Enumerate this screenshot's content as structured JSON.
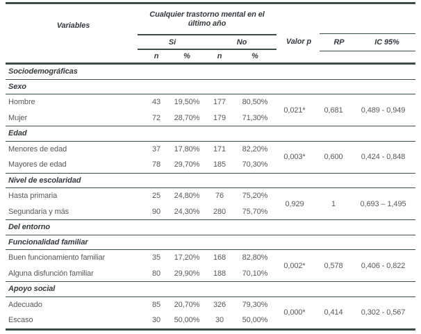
{
  "colors": {
    "line": "#3a4b48",
    "header_text": "#333a3d",
    "body_text": "#54575a"
  },
  "header": {
    "variables": "Variables",
    "group_title": "Cualquier trastorno mental en el último año",
    "si": "Si",
    "no": "No",
    "n": "n",
    "pct": "%",
    "valor_p": "Valor p",
    "rp": "RP",
    "ic": "IC 95%"
  },
  "rows": [
    {
      "type": "section",
      "label": "Sociodemográficas"
    },
    {
      "type": "section",
      "label": "Sexo"
    },
    {
      "type": "pair",
      "a": {
        "label": "Hombre",
        "n_si": "43",
        "pct_si": "19,50%",
        "n_no": "177",
        "pct_no": "80,50%"
      },
      "b": {
        "label": "Mujer",
        "n_si": "72",
        "pct_si": "28,70%",
        "n_no": "179",
        "pct_no": "71,30%"
      },
      "valor_p": "0,021*",
      "rp": "0,681",
      "ic": "0,489 - 0,949"
    },
    {
      "type": "section",
      "label": "Edad"
    },
    {
      "type": "pair",
      "a": {
        "label": "Menores de edad",
        "n_si": "37",
        "pct_si": "17,80%",
        "n_no": "171",
        "pct_no": "82,20%"
      },
      "b": {
        "label": "Mayores de edad",
        "n_si": "78",
        "pct_si": "29,70%",
        "n_no": "185",
        "pct_no": "70,30%"
      },
      "valor_p": "0,003*",
      "rp": "0,600",
      "ic": "0,424 - 0,848"
    },
    {
      "type": "section",
      "label": "Nivel de escolaridad"
    },
    {
      "type": "pair",
      "a": {
        "label": "Hasta primaria",
        "n_si": "25",
        "pct_si": "24,80%",
        "n_no": "76",
        "pct_no": "75,20%"
      },
      "b": {
        "label": "Segundaria y más",
        "n_si": "90",
        "pct_si": "24,30%",
        "n_no": "280",
        "pct_no": "75,70%"
      },
      "valor_p": "0,929",
      "rp": "1",
      "ic": "0,693 – 1,495"
    },
    {
      "type": "section",
      "label": "Del entorno"
    },
    {
      "type": "section",
      "label": "Funcionalidad familiar"
    },
    {
      "type": "pair",
      "a": {
        "label": "Buen funcionamiento familiar",
        "n_si": "35",
        "pct_si": "17,20%",
        "n_no": "168",
        "pct_no": "82,80%"
      },
      "b": {
        "label": "Alguna disfunción familiar",
        "n_si": "80",
        "pct_si": "29,90%",
        "n_no": "188",
        "pct_no": "70,10%"
      },
      "valor_p": "0,002*",
      "rp": "0,578",
      "ic": "0,406 - 0,822"
    },
    {
      "type": "section",
      "label": "Apoyo social"
    },
    {
      "type": "pair",
      "a": {
        "label": "Adecuado",
        "n_si": "85",
        "pct_si": "20,70%",
        "n_no": "326",
        "pct_no": "79,30%"
      },
      "b": {
        "label": "Escaso",
        "n_si": "30",
        "pct_si": "50,00%",
        "n_no": "30",
        "pct_no": "50,00%"
      },
      "valor_p": "0,000*",
      "rp": "0,414",
      "ic": "0,302 - 0,567"
    }
  ]
}
